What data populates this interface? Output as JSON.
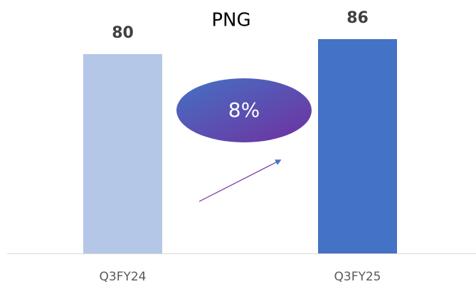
{
  "chart_data": {
    "type": "bar",
    "title": "PNG",
    "categories": [
      "Q3FY24",
      "Q3FY25"
    ],
    "values": [
      80,
      86
    ],
    "colors": [
      "#b4c7e7",
      "#4472c4"
    ],
    "ylim": [
      0,
      100
    ],
    "annotation": "8%"
  }
}
